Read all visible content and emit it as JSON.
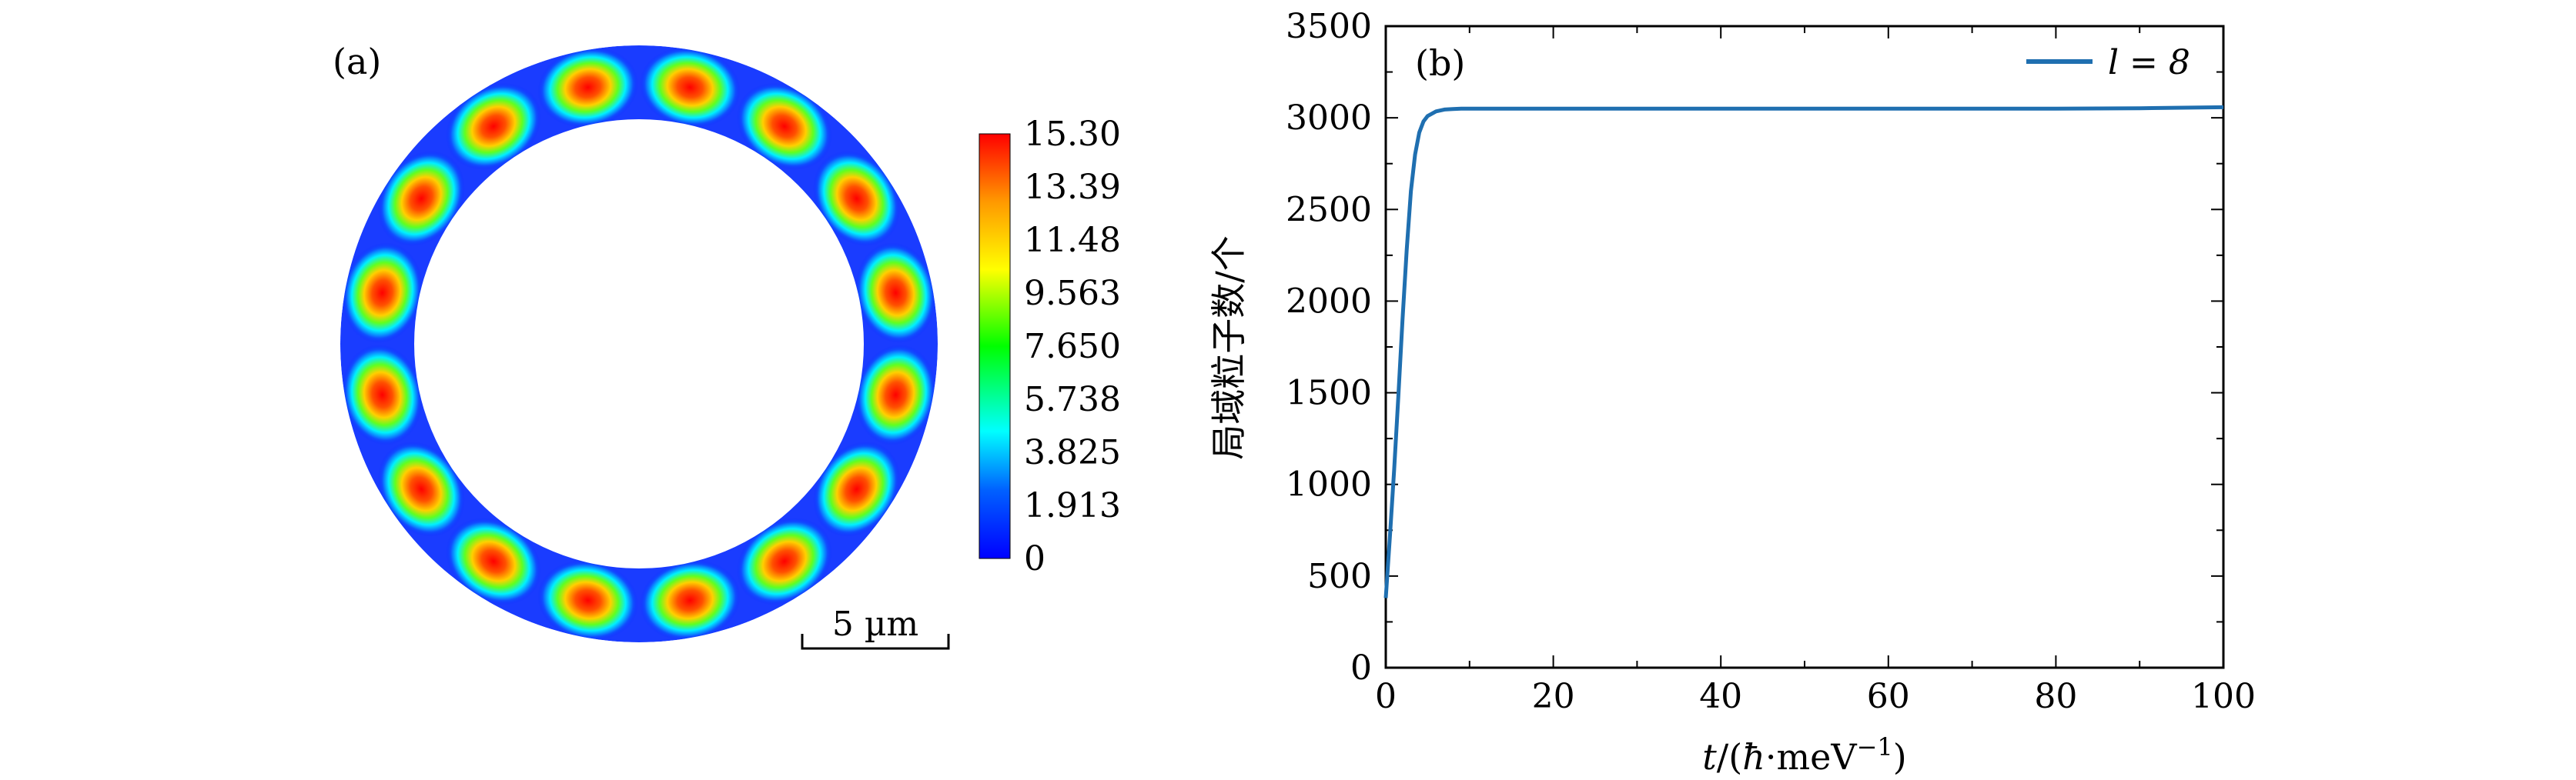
{
  "panel_a": {
    "label": "(a)",
    "scale_bar_label": "5 µm",
    "lobe_count": 16,
    "colorbar": {
      "ticks": [
        "15.30",
        "13.39",
        "11.48",
        "9.563",
        "7.650",
        "5.738",
        "3.825",
        "1.913",
        "0"
      ],
      "min": 0,
      "max": 15.3,
      "colors": [
        "#0000ff",
        "#00b0ff",
        "#00ffff",
        "#00ff00",
        "#ffff00",
        "#ff9900",
        "#ff0000"
      ]
    }
  },
  "panel_b": {
    "label": "(b)"
  },
  "chart_data": {
    "type": "line",
    "ylabel": "局域粒子数/个",
    "xlim": [
      0,
      100
    ],
    "ylim": [
      0,
      3500
    ],
    "x_ticks": [
      0,
      20,
      40,
      60,
      80,
      100
    ],
    "y_ticks": [
      0,
      500,
      1000,
      1500,
      2000,
      2500,
      3000,
      3500
    ],
    "legend_position": "top-right",
    "series": [
      {
        "name": "l = 8",
        "color": "#1f6fb0",
        "x": [
          0,
          0.5,
          1,
          1.5,
          2,
          2.5,
          3,
          3.5,
          4,
          4.5,
          5,
          6,
          7,
          8,
          9,
          10,
          12,
          15,
          20,
          30,
          40,
          50,
          60,
          70,
          80,
          90,
          100
        ],
        "y": [
          380,
          720,
          1080,
          1480,
          1900,
          2280,
          2600,
          2800,
          2920,
          2980,
          3010,
          3035,
          3045,
          3048,
          3050,
          3050,
          3050,
          3050,
          3050,
          3050,
          3050,
          3050,
          3050,
          3050,
          3050,
          3052,
          3058
        ]
      }
    ]
  }
}
